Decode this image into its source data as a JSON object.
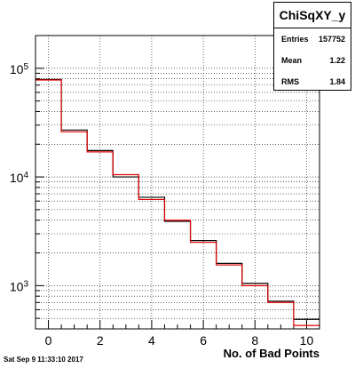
{
  "chart_data": {
    "type": "histogram",
    "title": "ChiSqXY_y",
    "xlabel": "No. of Bad Points",
    "ylabel": "",
    "y_scale": "log",
    "xlim": [
      -0.5,
      10.5
    ],
    "ylim": [
      400,
      200000
    ],
    "grid": true,
    "stats_placement": "top-right",
    "x_ticks": [
      "0",
      "2",
      "4",
      "6",
      "8",
      "10"
    ],
    "y_ticks": [
      {
        "value": 1000,
        "base": "10",
        "exponent": "3"
      },
      {
        "value": 10000,
        "base": "10",
        "exponent": "4"
      },
      {
        "value": 100000,
        "base": "10",
        "exponent": "5"
      }
    ],
    "bin_edges": [
      -0.5,
      0.5,
      1.5,
      2.5,
      3.5,
      4.5,
      5.5,
      6.5,
      7.5,
      8.5,
      9.5,
      10.5
    ],
    "series": [
      {
        "color": "#000000",
        "values": [
          79000,
          27000,
          17500,
          10000,
          6500,
          3900,
          2600,
          1600,
          1050,
          720,
          490
        ]
      },
      {
        "color": "#e00000",
        "values": [
          78000,
          26000,
          17000,
          10500,
          6200,
          4000,
          2500,
          1550,
          1000,
          700,
          430
        ]
      }
    ]
  },
  "stats": {
    "title": "ChiSqXY_y",
    "entries_label": "Entries",
    "entries_value": "157752",
    "mean_label": "Mean",
    "mean_value": "1.22",
    "rms_label": "RMS",
    "rms_value": "1.84"
  },
  "footer": {
    "date": "Sat Sep  9 11:33:10 2017"
  }
}
